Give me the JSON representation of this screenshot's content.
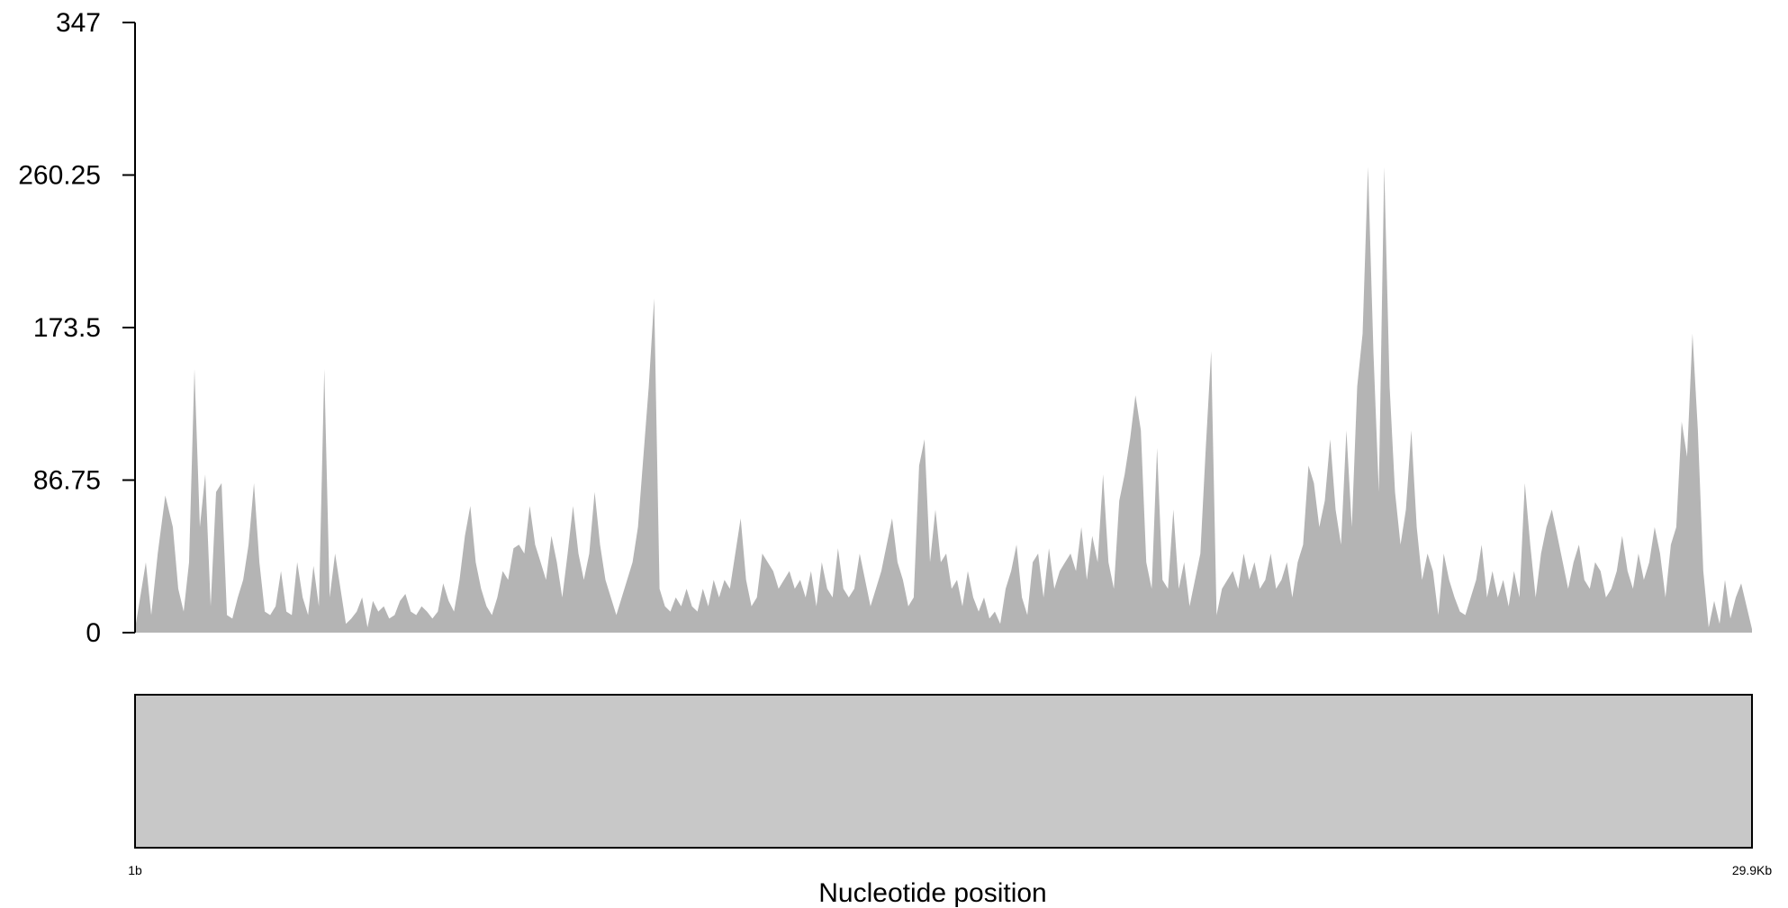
{
  "chart_data": {
    "type": "area",
    "xlabel": "Nucleotide position",
    "ylabel": "",
    "ylim": [
      0,
      347
    ],
    "yticks": [
      "347",
      "260.25",
      "173.5",
      "86.75",
      "0"
    ],
    "ytick_values": [
      347,
      260.25,
      173.5,
      86.75,
      0
    ],
    "xlim": [
      1,
      29900
    ],
    "xtick_labels": [
      "1b",
      "29.9Kb"
    ],
    "xtick_values": [
      1,
      29900
    ],
    "grid": false,
    "legend": "none",
    "colors": {
      "area": "#b4b4b4",
      "track": "#c8c8c8",
      "axis": "#000000"
    },
    "coverage": [
      [
        1,
        2
      ],
      [
        200,
        40
      ],
      [
        300,
        10
      ],
      [
        420,
        45
      ],
      [
        560,
        78
      ],
      [
        700,
        60
      ],
      [
        800,
        25
      ],
      [
        900,
        12
      ],
      [
        1000,
        40
      ],
      [
        1100,
        150
      ],
      [
        1200,
        60
      ],
      [
        1300,
        90
      ],
      [
        1400,
        15
      ],
      [
        1500,
        80
      ],
      [
        1600,
        85
      ],
      [
        1700,
        10
      ],
      [
        1800,
        8
      ],
      [
        1900,
        20
      ],
      [
        2000,
        30
      ],
      [
        2100,
        50
      ],
      [
        2200,
        85
      ],
      [
        2300,
        40
      ],
      [
        2400,
        12
      ],
      [
        2500,
        10
      ],
      [
        2600,
        15
      ],
      [
        2700,
        35
      ],
      [
        2800,
        12
      ],
      [
        2900,
        10
      ],
      [
        3000,
        40
      ],
      [
        3100,
        20
      ],
      [
        3200,
        10
      ],
      [
        3300,
        38
      ],
      [
        3400,
        15
      ],
      [
        3500,
        150
      ],
      [
        3600,
        20
      ],
      [
        3700,
        45
      ],
      [
        3800,
        25
      ],
      [
        3900,
        5
      ],
      [
        4000,
        8
      ],
      [
        4100,
        12
      ],
      [
        4200,
        20
      ],
      [
        4300,
        3
      ],
      [
        4400,
        18
      ],
      [
        4500,
        12
      ],
      [
        4600,
        15
      ],
      [
        4700,
        8
      ],
      [
        4800,
        10
      ],
      [
        4900,
        18
      ],
      [
        5000,
        22
      ],
      [
        5100,
        12
      ],
      [
        5200,
        10
      ],
      [
        5300,
        15
      ],
      [
        5400,
        12
      ],
      [
        5500,
        8
      ],
      [
        5600,
        12
      ],
      [
        5700,
        28
      ],
      [
        5800,
        18
      ],
      [
        5900,
        12
      ],
      [
        6000,
        30
      ],
      [
        6100,
        55
      ],
      [
        6200,
        72
      ],
      [
        6300,
        40
      ],
      [
        6400,
        25
      ],
      [
        6500,
        15
      ],
      [
        6600,
        10
      ],
      [
        6700,
        20
      ],
      [
        6800,
        35
      ],
      [
        6900,
        30
      ],
      [
        7000,
        48
      ],
      [
        7100,
        50
      ],
      [
        7200,
        45
      ],
      [
        7300,
        72
      ],
      [
        7400,
        50
      ],
      [
        7500,
        40
      ],
      [
        7600,
        30
      ],
      [
        7700,
        55
      ],
      [
        7800,
        40
      ],
      [
        7900,
        20
      ],
      [
        8000,
        45
      ],
      [
        8100,
        72
      ],
      [
        8200,
        45
      ],
      [
        8300,
        30
      ],
      [
        8400,
        45
      ],
      [
        8500,
        80
      ],
      [
        8600,
        50
      ],
      [
        8700,
        30
      ],
      [
        8800,
        20
      ],
      [
        8900,
        10
      ],
      [
        9000,
        20
      ],
      [
        9100,
        30
      ],
      [
        9200,
        40
      ],
      [
        9300,
        60
      ],
      [
        9400,
        100
      ],
      [
        9500,
        140
      ],
      [
        9600,
        190
      ],
      [
        9700,
        25
      ],
      [
        9800,
        15
      ],
      [
        9900,
        12
      ],
      [
        10000,
        20
      ],
      [
        10100,
        15
      ],
      [
        10200,
        25
      ],
      [
        10300,
        15
      ],
      [
        10400,
        12
      ],
      [
        10500,
        25
      ],
      [
        10600,
        15
      ],
      [
        10700,
        30
      ],
      [
        10800,
        20
      ],
      [
        10900,
        30
      ],
      [
        11000,
        25
      ],
      [
        11100,
        45
      ],
      [
        11200,
        65
      ],
      [
        11300,
        30
      ],
      [
        11400,
        15
      ],
      [
        11500,
        20
      ],
      [
        11600,
        45
      ],
      [
        11700,
        40
      ],
      [
        11800,
        35
      ],
      [
        11900,
        25
      ],
      [
        12000,
        30
      ],
      [
        12100,
        35
      ],
      [
        12200,
        25
      ],
      [
        12300,
        30
      ],
      [
        12400,
        20
      ],
      [
        12500,
        35
      ],
      [
        12600,
        15
      ],
      [
        12700,
        40
      ],
      [
        12800,
        25
      ],
      [
        12900,
        20
      ],
      [
        13000,
        48
      ],
      [
        13100,
        25
      ],
      [
        13200,
        20
      ],
      [
        13300,
        25
      ],
      [
        13400,
        45
      ],
      [
        13500,
        30
      ],
      [
        13600,
        15
      ],
      [
        13700,
        25
      ],
      [
        13800,
        35
      ],
      [
        13900,
        50
      ],
      [
        14000,
        65
      ],
      [
        14100,
        40
      ],
      [
        14200,
        30
      ],
      [
        14300,
        15
      ],
      [
        14400,
        20
      ],
      [
        14500,
        95
      ],
      [
        14600,
        110
      ],
      [
        14700,
        40
      ],
      [
        14800,
        70
      ],
      [
        14900,
        40
      ],
      [
        15000,
        45
      ],
      [
        15100,
        25
      ],
      [
        15200,
        30
      ],
      [
        15300,
        15
      ],
      [
        15400,
        35
      ],
      [
        15500,
        20
      ],
      [
        15600,
        12
      ],
      [
        15700,
        20
      ],
      [
        15800,
        8
      ],
      [
        15900,
        12
      ],
      [
        16000,
        5
      ],
      [
        16100,
        25
      ],
      [
        16200,
        35
      ],
      [
        16300,
        50
      ],
      [
        16400,
        20
      ],
      [
        16500,
        10
      ],
      [
        16600,
        40
      ],
      [
        16700,
        45
      ],
      [
        16800,
        20
      ],
      [
        16900,
        48
      ],
      [
        17000,
        25
      ],
      [
        17100,
        35
      ],
      [
        17200,
        40
      ],
      [
        17300,
        45
      ],
      [
        17400,
        35
      ],
      [
        17500,
        60
      ],
      [
        17600,
        30
      ],
      [
        17700,
        55
      ],
      [
        17800,
        40
      ],
      [
        17900,
        90
      ],
      [
        18000,
        40
      ],
      [
        18100,
        25
      ],
      [
        18200,
        75
      ],
      [
        18300,
        90
      ],
      [
        18400,
        110
      ],
      [
        18500,
        135
      ],
      [
        18600,
        115
      ],
      [
        18700,
        40
      ],
      [
        18800,
        25
      ],
      [
        18900,
        105
      ],
      [
        19000,
        30
      ],
      [
        19100,
        25
      ],
      [
        19200,
        70
      ],
      [
        19300,
        25
      ],
      [
        19400,
        40
      ],
      [
        19500,
        15
      ],
      [
        19600,
        30
      ],
      [
        19700,
        45
      ],
      [
        19800,
        105
      ],
      [
        19900,
        160
      ],
      [
        20000,
        10
      ],
      [
        20100,
        25
      ],
      [
        20200,
        30
      ],
      [
        20300,
        35
      ],
      [
        20400,
        25
      ],
      [
        20500,
        45
      ],
      [
        20600,
        30
      ],
      [
        20700,
        40
      ],
      [
        20800,
        25
      ],
      [
        20900,
        30
      ],
      [
        21000,
        45
      ],
      [
        21100,
        25
      ],
      [
        21200,
        30
      ],
      [
        21300,
        40
      ],
      [
        21400,
        20
      ],
      [
        21500,
        40
      ],
      [
        21600,
        50
      ],
      [
        21700,
        95
      ],
      [
        21800,
        85
      ],
      [
        21900,
        60
      ],
      [
        22000,
        75
      ],
      [
        22100,
        110
      ],
      [
        22200,
        70
      ],
      [
        22300,
        50
      ],
      [
        22400,
        115
      ],
      [
        22500,
        60
      ],
      [
        22600,
        140
      ],
      [
        22700,
        170
      ],
      [
        22800,
        265
      ],
      [
        22900,
        160
      ],
      [
        23000,
        80
      ],
      [
        23100,
        265
      ],
      [
        23200,
        140
      ],
      [
        23300,
        80
      ],
      [
        23400,
        50
      ],
      [
        23500,
        70
      ],
      [
        23600,
        115
      ],
      [
        23700,
        60
      ],
      [
        23800,
        30
      ],
      [
        23900,
        45
      ],
      [
        24000,
        35
      ],
      [
        24100,
        10
      ],
      [
        24200,
        45
      ],
      [
        24300,
        30
      ],
      [
        24400,
        20
      ],
      [
        24500,
        12
      ],
      [
        24600,
        10
      ],
      [
        24700,
        20
      ],
      [
        24800,
        30
      ],
      [
        24900,
        50
      ],
      [
        25000,
        20
      ],
      [
        25100,
        35
      ],
      [
        25200,
        20
      ],
      [
        25300,
        30
      ],
      [
        25400,
        15
      ],
      [
        25500,
        35
      ],
      [
        25600,
        20
      ],
      [
        25700,
        85
      ],
      [
        25800,
        50
      ],
      [
        25900,
        20
      ],
      [
        26000,
        45
      ],
      [
        26100,
        60
      ],
      [
        26200,
        70
      ],
      [
        26300,
        55
      ],
      [
        26400,
        40
      ],
      [
        26500,
        25
      ],
      [
        26600,
        40
      ],
      [
        26700,
        50
      ],
      [
        26800,
        30
      ],
      [
        26900,
        25
      ],
      [
        27000,
        40
      ],
      [
        27100,
        35
      ],
      [
        27200,
        20
      ],
      [
        27300,
        25
      ],
      [
        27400,
        35
      ],
      [
        27500,
        55
      ],
      [
        27600,
        35
      ],
      [
        27700,
        25
      ],
      [
        27800,
        45
      ],
      [
        27900,
        30
      ],
      [
        28000,
        40
      ],
      [
        28100,
        60
      ],
      [
        28200,
        45
      ],
      [
        28300,
        20
      ],
      [
        28400,
        50
      ],
      [
        28500,
        60
      ],
      [
        28600,
        120
      ],
      [
        28700,
        100
      ],
      [
        28800,
        170
      ],
      [
        28900,
        115
      ],
      [
        29000,
        35
      ],
      [
        29100,
        3
      ],
      [
        29200,
        18
      ],
      [
        29300,
        5
      ],
      [
        29400,
        30
      ],
      [
        29500,
        8
      ],
      [
        29600,
        20
      ],
      [
        29700,
        28
      ],
      [
        29800,
        15
      ],
      [
        29900,
        2
      ]
    ],
    "track_label": ""
  }
}
